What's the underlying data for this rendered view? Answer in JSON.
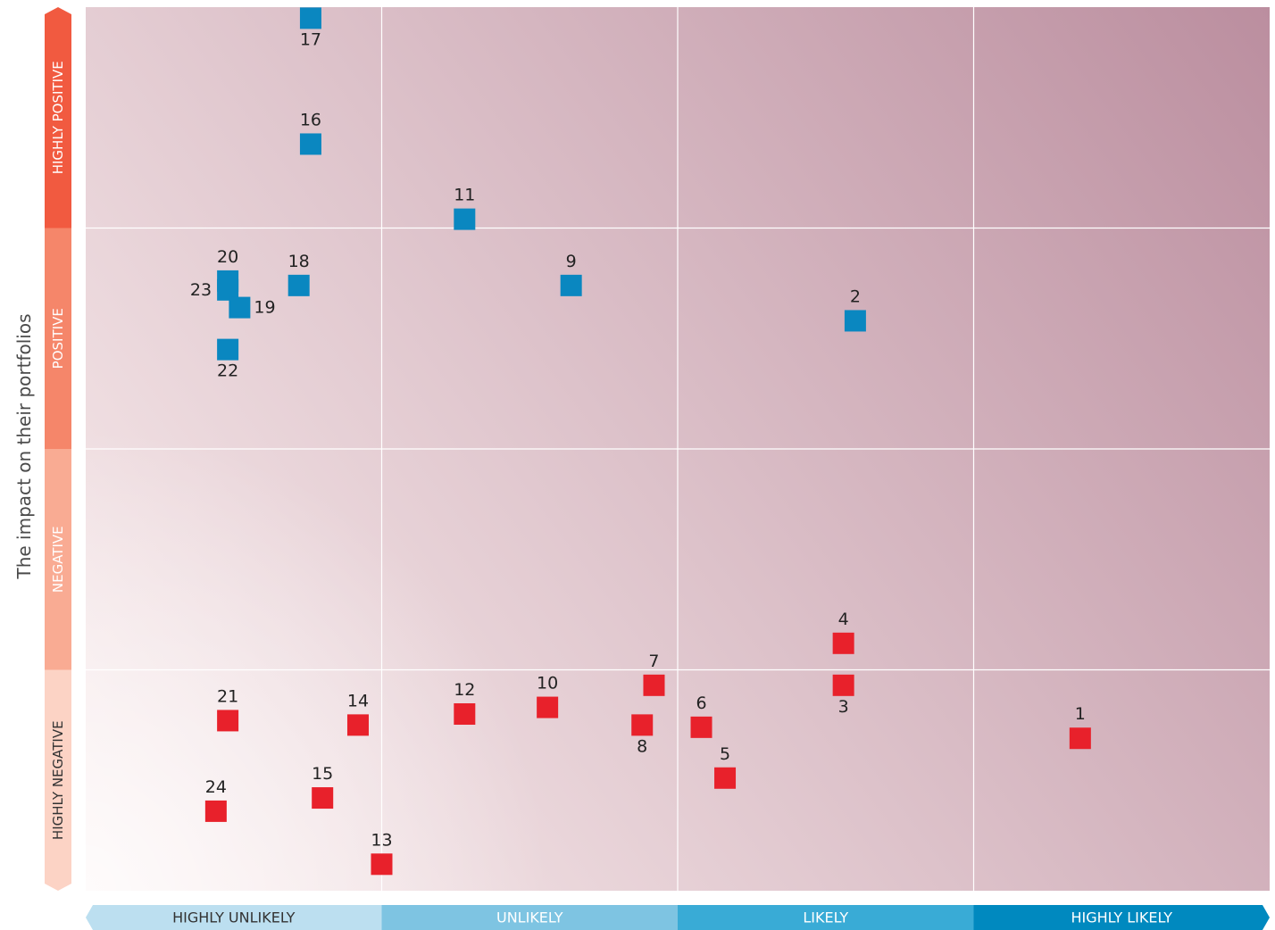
{
  "chart_data": {
    "type": "scatter",
    "ylabel": "The impact on their portfolios",
    "x_categories": [
      "HIGHLY UNLIKELY",
      "UNLIKELY",
      "LIKELY",
      "HIGHLY LIKELY"
    ],
    "y_categories": [
      "HIGHLY NEGATIVE",
      "NEGATIVE",
      "POSITIVE",
      "HIGHLY POSITIVE"
    ],
    "xlim": [
      0,
      4
    ],
    "ylim": [
      0,
      4
    ],
    "grid": true,
    "colors": {
      "positive_marker": "#0a87c0",
      "negative_marker": "#e8212b",
      "y_band": [
        "#fcd3c5",
        "#f9ab93",
        "#f5866a",
        "#f15a40"
      ],
      "x_band": [
        "#bcdff0",
        "#7ec4e2",
        "#39abd6",
        "#0089bf"
      ],
      "bg_light": "#fbf0f0",
      "bg_dark": "#bb8e9f"
    },
    "series": [
      {
        "color_key": "positive_marker",
        "points": [
          {
            "label": "17",
            "x": 0.76,
            "y": 3.95,
            "label_pos": "below"
          },
          {
            "label": "16",
            "x": 0.76,
            "y": 3.38,
            "label_pos": "above"
          },
          {
            "label": "11",
            "x": 1.28,
            "y": 3.04,
            "label_pos": "above"
          },
          {
            "label": "20",
            "x": 0.48,
            "y": 2.76,
            "label_pos": "above"
          },
          {
            "label": "23",
            "x": 0.48,
            "y": 2.72,
            "label_pos": "left"
          },
          {
            "label": "18",
            "x": 0.72,
            "y": 2.74,
            "label_pos": "above"
          },
          {
            "label": "19",
            "x": 0.52,
            "y": 2.64,
            "label_pos": "right"
          },
          {
            "label": "9",
            "x": 1.64,
            "y": 2.74,
            "label_pos": "above"
          },
          {
            "label": "22",
            "x": 0.48,
            "y": 2.45,
            "label_pos": "below"
          },
          {
            "label": "2",
            "x": 2.6,
            "y": 2.58,
            "label_pos": "above"
          }
        ]
      },
      {
        "color_key": "negative_marker",
        "points": [
          {
            "label": "4",
            "x": 2.56,
            "y": 1.12,
            "label_pos": "above"
          },
          {
            "label": "3",
            "x": 2.56,
            "y": 0.93,
            "label_pos": "below"
          },
          {
            "label": "7",
            "x": 1.92,
            "y": 0.93,
            "label_pos": "above"
          },
          {
            "label": "21",
            "x": 0.48,
            "y": 0.77,
            "label_pos": "above"
          },
          {
            "label": "14",
            "x": 0.92,
            "y": 0.75,
            "label_pos": "above"
          },
          {
            "label": "12",
            "x": 1.28,
            "y": 0.8,
            "label_pos": "above"
          },
          {
            "label": "10",
            "x": 1.56,
            "y": 0.83,
            "label_pos": "above"
          },
          {
            "label": "8",
            "x": 1.88,
            "y": 0.75,
            "label_pos": "below"
          },
          {
            "label": "6",
            "x": 2.08,
            "y": 0.74,
            "label_pos": "above"
          },
          {
            "label": "5",
            "x": 2.16,
            "y": 0.51,
            "label_pos": "above"
          },
          {
            "label": "1",
            "x": 3.36,
            "y": 0.69,
            "label_pos": "above"
          },
          {
            "label": "15",
            "x": 0.8,
            "y": 0.42,
            "label_pos": "above"
          },
          {
            "label": "24",
            "x": 0.44,
            "y": 0.36,
            "label_pos": "above"
          },
          {
            "label": "13",
            "x": 1.0,
            "y": 0.12,
            "label_pos": "above"
          }
        ]
      }
    ]
  }
}
